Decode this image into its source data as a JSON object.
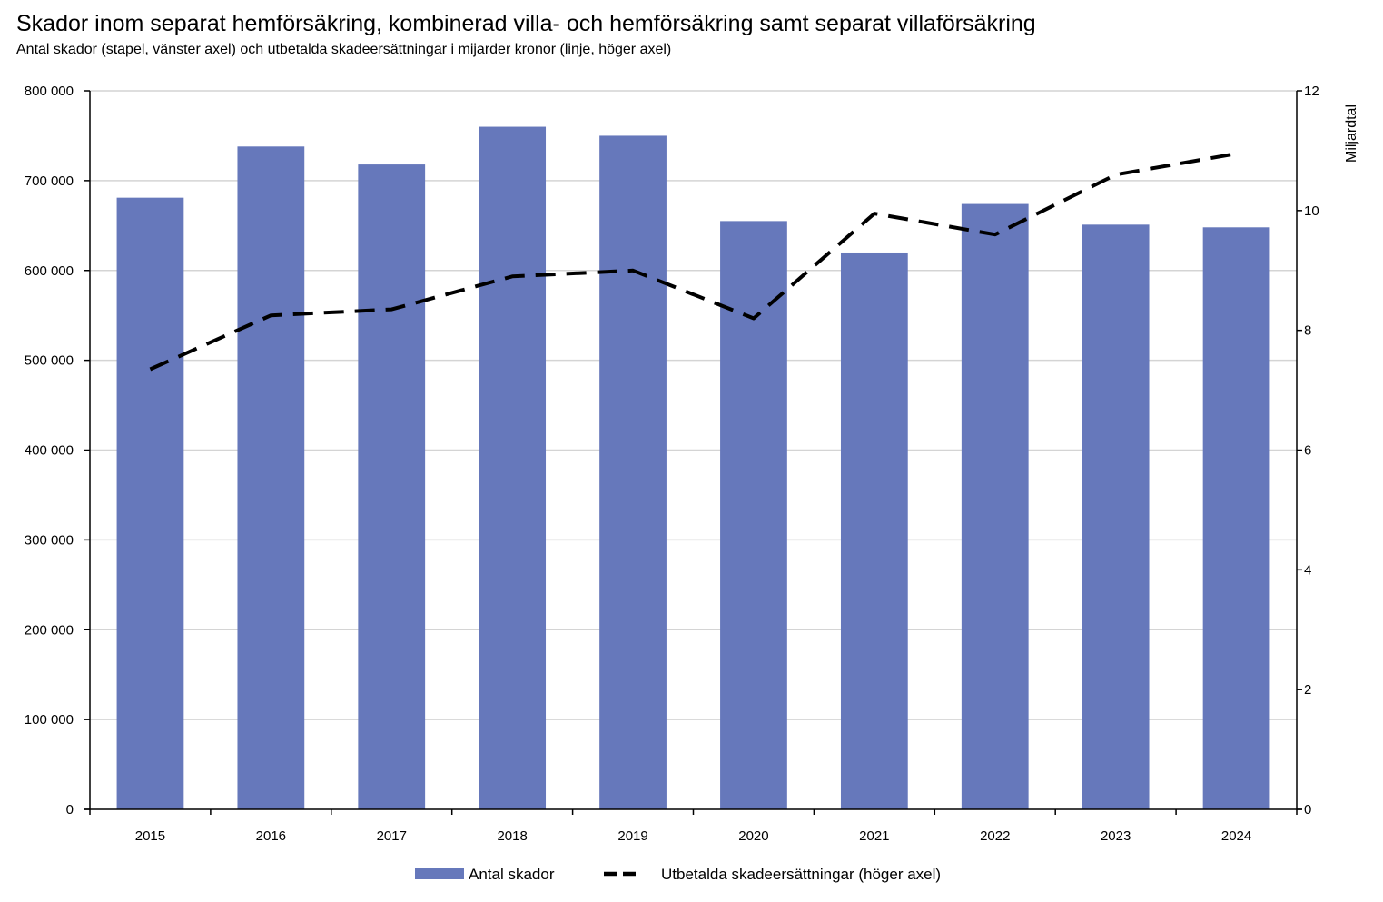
{
  "chart_data": {
    "type": "bar",
    "title": "Skador inom separat hemförsäkring, kombinerad villa- och hemförsäkring samt separat villaförsäkring",
    "subtitle": "Antal skador (stapel, vänster axel) och utbetalda skadeersättningar i mijarder kronor (linje, höger axel)",
    "categories": [
      "2015",
      "2016",
      "2017",
      "2018",
      "2019",
      "2020",
      "2021",
      "2022",
      "2023",
      "2024"
    ],
    "series": [
      {
        "name": "Antal skador",
        "type": "bar",
        "axis": "left",
        "color": "#6678bb",
        "values": [
          681000,
          738000,
          718000,
          760000,
          750000,
          655000,
          620000,
          674000,
          651000,
          648000
        ]
      },
      {
        "name": "Utbetalda skadeersättningar (höger axel)",
        "type": "line",
        "axis": "right",
        "style": "dashed",
        "color": "#000000",
        "values": [
          7.35,
          8.25,
          8.35,
          8.9,
          9.0,
          8.2,
          9.95,
          9.6,
          10.6,
          10.95
        ]
      }
    ],
    "y_left": {
      "lim": [
        0,
        800000
      ],
      "ticks": [
        0,
        100000,
        200000,
        300000,
        400000,
        500000,
        600000,
        700000,
        800000
      ],
      "tick_labels": [
        "0",
        "100 000",
        "200 000",
        "300 000",
        "400 000",
        "500 000",
        "600 000",
        "700 000",
        "800 000"
      ],
      "label": ""
    },
    "y_right": {
      "lim": [
        0,
        12
      ],
      "ticks": [
        0,
        2,
        4,
        6,
        8,
        10,
        12
      ],
      "tick_labels": [
        "0",
        "2",
        "4",
        "6",
        "8",
        "10",
        "12"
      ],
      "label": "Miljardtal"
    },
    "grid": true,
    "legend_position": "bottom-center"
  }
}
